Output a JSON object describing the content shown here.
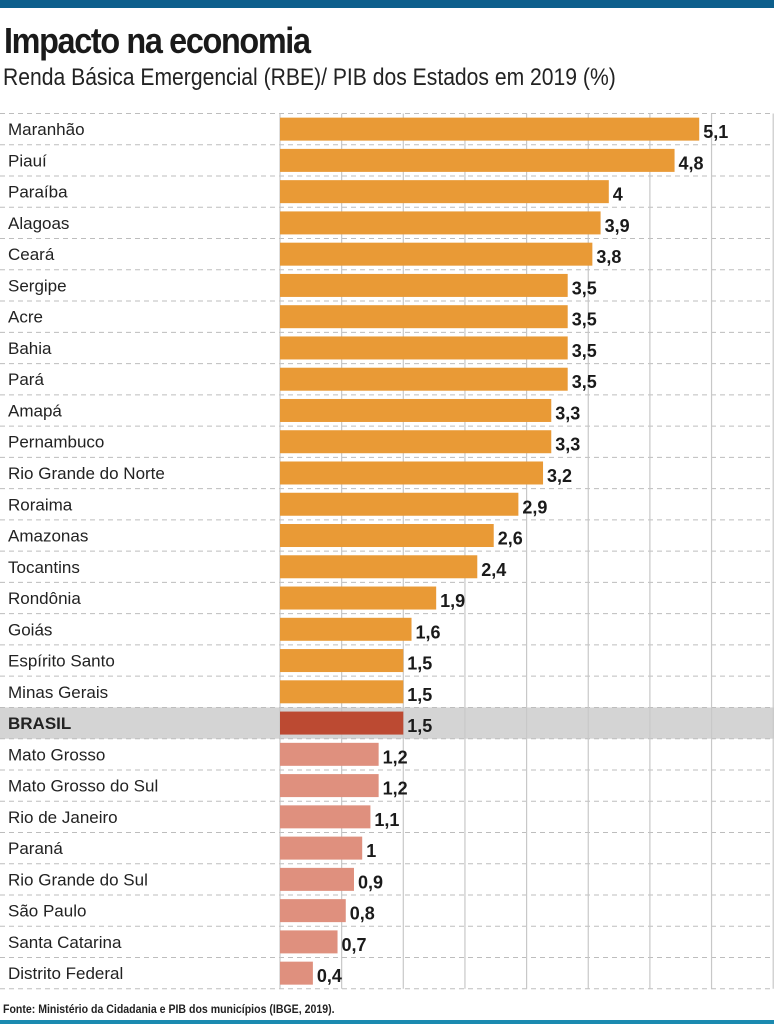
{
  "chart_data": {
    "type": "bar",
    "orientation": "horizontal",
    "title": "Impacto na economia",
    "subtitle": "Renda Básica Emergencial (RBE)/ PIB dos Estados em 2019 (%)",
    "categories": [
      "Maranhão",
      "Piauí",
      "Paraíba",
      "Alagoas",
      "Ceará",
      "Sergipe",
      "Acre",
      "Bahia",
      "Pará",
      "Amapá",
      "Pernambuco",
      "Rio Grande do Norte",
      "Roraima",
      "Amazonas",
      "Tocantins",
      "Rondônia",
      "Goiás",
      "Espírito Santo",
      "Minas Gerais",
      "BRASIL",
      "Mato Grosso",
      "Mato Grosso do Sul",
      "Rio de Janeiro",
      "Paraná",
      "Rio Grande do Sul",
      "São Paulo",
      "Santa Catarina",
      "Distrito Federal"
    ],
    "values": [
      5.1,
      4.8,
      4,
      3.9,
      3.8,
      3.5,
      3.5,
      3.5,
      3.5,
      3.3,
      3.3,
      3.2,
      2.9,
      2.6,
      2.4,
      1.9,
      1.6,
      1.5,
      1.5,
      1.5,
      1.2,
      1.2,
      1.1,
      1,
      0.9,
      0.8,
      0.7,
      0.4
    ],
    "value_labels": [
      "5,1",
      "4,8",
      "4",
      "3,9",
      "3,8",
      "3,5",
      "3,5",
      "3,5",
      "3,5",
      "3,3",
      "3,3",
      "3,2",
      "2,9",
      "2,6",
      "2,4",
      "1,9",
      "1,6",
      "1,5",
      "1,5",
      "1,5",
      "1,2",
      "1,2",
      "1,1",
      "1",
      "0,9",
      "0,8",
      "0,7",
      "0,4"
    ],
    "highlight": "BRASIL",
    "xlim": [
      0,
      6
    ],
    "grid": true,
    "colors": {
      "above": "#e99a36",
      "highlight": "#bc4a32",
      "below": "#df907e",
      "highlight_band": "#d4d4d4"
    }
  },
  "footer": "Fonte: Ministério da Cidadania e PIB dos municípios (IBGE, 2019)."
}
